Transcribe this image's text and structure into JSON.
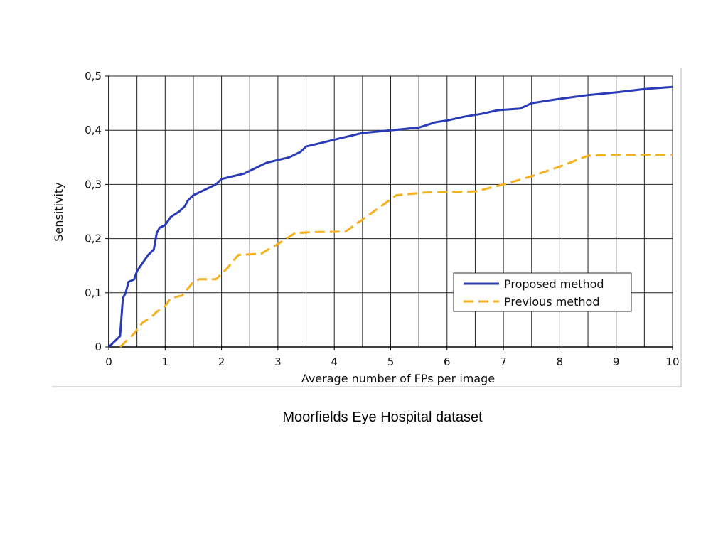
{
  "caption": "Moorfields Eye Hospital dataset",
  "chart_data": {
    "type": "line",
    "title": "",
    "xlabel": "Average number of FPs per image",
    "ylabel": "Sensitivity",
    "xlim": [
      0,
      10
    ],
    "ylim": [
      0,
      0.5
    ],
    "x_ticks": [
      "0",
      "1",
      "2",
      "3",
      "4",
      "5",
      "6",
      "7",
      "8",
      "9",
      "10"
    ],
    "y_ticks": [
      "0",
      "0,1",
      "0,2",
      "0,3",
      "0,4",
      "0,5"
    ],
    "grid": true,
    "legend_position": "bottom-right",
    "series": [
      {
        "name": "Proposed method",
        "color": "#2a3bb8",
        "style": "solid",
        "points": [
          [
            0.0,
            0.0
          ],
          [
            0.1,
            0.01
          ],
          [
            0.2,
            0.02
          ],
          [
            0.25,
            0.09
          ],
          [
            0.3,
            0.1
          ],
          [
            0.35,
            0.12
          ],
          [
            0.45,
            0.125
          ],
          [
            0.5,
            0.14
          ],
          [
            0.6,
            0.155
          ],
          [
            0.7,
            0.17
          ],
          [
            0.8,
            0.18
          ],
          [
            0.85,
            0.21
          ],
          [
            0.9,
            0.22
          ],
          [
            1.0,
            0.225
          ],
          [
            1.1,
            0.24
          ],
          [
            1.25,
            0.25
          ],
          [
            1.35,
            0.26
          ],
          [
            1.4,
            0.27
          ],
          [
            1.5,
            0.28
          ],
          [
            1.7,
            0.29
          ],
          [
            1.9,
            0.3
          ],
          [
            2.0,
            0.31
          ],
          [
            2.2,
            0.315
          ],
          [
            2.4,
            0.32
          ],
          [
            2.6,
            0.33
          ],
          [
            2.8,
            0.34
          ],
          [
            3.0,
            0.345
          ],
          [
            3.2,
            0.35
          ],
          [
            3.4,
            0.36
          ],
          [
            3.5,
            0.37
          ],
          [
            3.7,
            0.375
          ],
          [
            3.9,
            0.38
          ],
          [
            4.1,
            0.385
          ],
          [
            4.3,
            0.39
          ],
          [
            4.5,
            0.395
          ],
          [
            4.8,
            0.398
          ],
          [
            5.0,
            0.4
          ],
          [
            5.5,
            0.405
          ],
          [
            5.8,
            0.415
          ],
          [
            6.0,
            0.418
          ],
          [
            6.3,
            0.425
          ],
          [
            6.6,
            0.43
          ],
          [
            6.9,
            0.437
          ],
          [
            7.3,
            0.44
          ],
          [
            7.5,
            0.45
          ],
          [
            8.0,
            0.458
          ],
          [
            8.5,
            0.465
          ],
          [
            9.0,
            0.47
          ],
          [
            9.5,
            0.476
          ],
          [
            10.0,
            0.48
          ]
        ]
      },
      {
        "name": "Previous method",
        "color": "#f5b01b",
        "style": "dashed",
        "points": [
          [
            0.2,
            0.0
          ],
          [
            0.3,
            0.01
          ],
          [
            0.45,
            0.025
          ],
          [
            0.6,
            0.045
          ],
          [
            0.75,
            0.055
          ],
          [
            0.85,
            0.065
          ],
          [
            1.0,
            0.075
          ],
          [
            1.1,
            0.09
          ],
          [
            1.3,
            0.095
          ],
          [
            1.5,
            0.12
          ],
          [
            1.6,
            0.125
          ],
          [
            1.9,
            0.125
          ],
          [
            2.1,
            0.145
          ],
          [
            2.3,
            0.17
          ],
          [
            2.7,
            0.172
          ],
          [
            3.0,
            0.19
          ],
          [
            3.3,
            0.21
          ],
          [
            3.6,
            0.212
          ],
          [
            4.2,
            0.213
          ],
          [
            4.7,
            0.25
          ],
          [
            5.1,
            0.28
          ],
          [
            5.6,
            0.285
          ],
          [
            6.0,
            0.286
          ],
          [
            6.5,
            0.287
          ],
          [
            7.0,
            0.3
          ],
          [
            7.5,
            0.315
          ],
          [
            8.0,
            0.333
          ],
          [
            8.5,
            0.353
          ],
          [
            9.0,
            0.355
          ],
          [
            10.0,
            0.355
          ]
        ]
      }
    ]
  }
}
